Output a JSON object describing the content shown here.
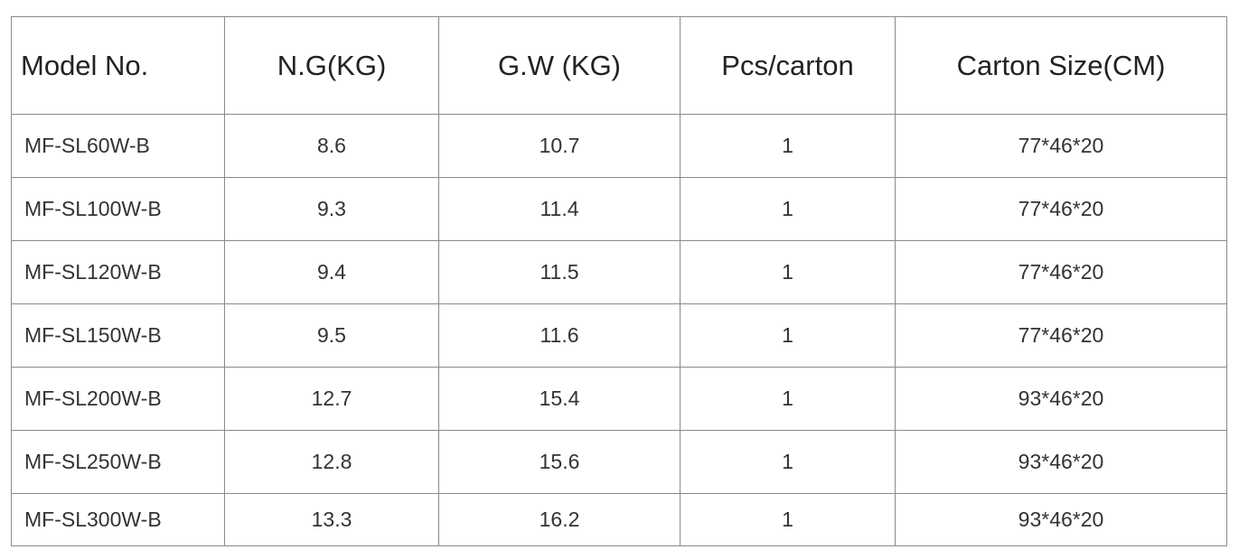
{
  "table": {
    "header": [
      "Model No.",
      "N.G(KG)",
      "G.W (KG)",
      "Pcs/carton",
      "Carton Size(CM)"
    ],
    "rows": [
      [
        "MF-SL60W-B",
        8.6,
        10.7,
        1,
        "77*46*20"
      ],
      [
        "MF-SL100W-B",
        9.3,
        11.4,
        1,
        "77*46*20"
      ],
      [
        "MF-SL120W-B",
        9.4,
        11.5,
        1,
        "77*46*20"
      ],
      [
        "MF-SL150W-B",
        9.5,
        11.6,
        1,
        "77*46*20"
      ],
      [
        "MF-SL200W-B",
        12.7,
        15.4,
        1,
        "93*46*20"
      ],
      [
        "MF-SL250W-B",
        12.8,
        15.6,
        1,
        "93*46*20"
      ],
      [
        "MF-SL300W-B",
        13.3,
        16.2,
        1,
        "93*46*20"
      ]
    ]
  }
}
